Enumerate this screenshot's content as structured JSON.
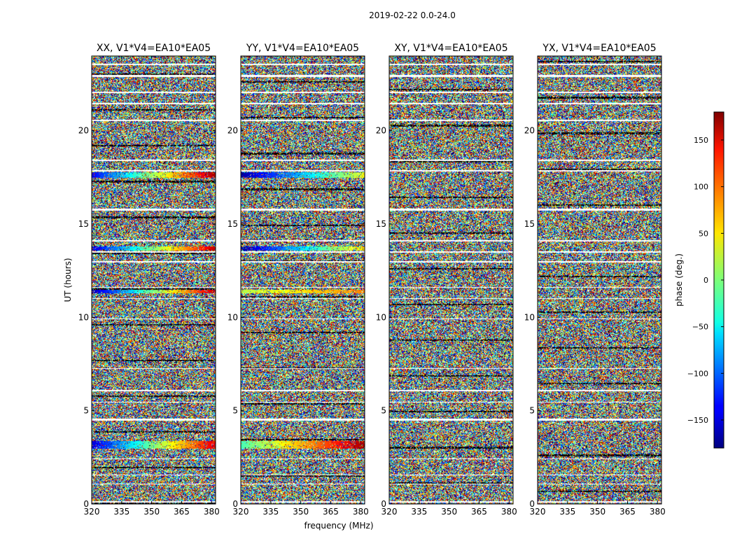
{
  "figure": {
    "suptitle": "2019-02-22 0.0-24.0",
    "xlabel": "frequency (MHz)",
    "ylabel": "UT (hours)"
  },
  "chart_data": [
    {
      "type": "heatmap",
      "title": "XX, V1*V4=EA10*EA05",
      "xlabel": "frequency (MHz)",
      "ylabel": "UT (hours)",
      "xlim": [
        320,
        382
      ],
      "ylim": [
        0,
        24
      ],
      "xticks": [
        320,
        335,
        350,
        365,
        380
      ],
      "yticks": [
        0,
        5,
        10,
        15,
        20
      ],
      "value": "phase (deg.)",
      "features": [
        {
          "ut": [
            3.0,
            3.4
          ],
          "phase_low_freq": -150,
          "phase_high_freq": 150
        },
        {
          "ut": [
            11.3,
            11.5
          ],
          "phase_low_freq": -160,
          "phase_high_freq": 160
        },
        {
          "ut": [
            13.6,
            13.8
          ],
          "phase_low_freq": -150,
          "phase_high_freq": 160
        },
        {
          "ut": [
            17.5,
            17.8
          ],
          "phase_low_freq": -140,
          "phase_high_freq": 170
        }
      ]
    },
    {
      "type": "heatmap",
      "title": "YY, V1*V4=EA10*EA05",
      "xlabel": "frequency (MHz)",
      "ylabel": "UT (hours)",
      "xlim": [
        320,
        382
      ],
      "ylim": [
        0,
        24
      ],
      "xticks": [
        320,
        335,
        350,
        365,
        380
      ],
      "yticks": [
        0,
        5,
        10,
        15,
        20
      ],
      "value": "phase (deg.)",
      "features": [
        {
          "ut": [
            3.0,
            3.4
          ],
          "phase_low_freq": -20,
          "phase_high_freq": 170
        },
        {
          "ut": [
            11.3,
            11.5
          ],
          "phase_low_freq": 20,
          "phase_high_freq": 90
        },
        {
          "ut": [
            13.6,
            13.8
          ],
          "phase_low_freq": -170,
          "phase_high_freq": 60
        },
        {
          "ut": [
            17.5,
            17.8
          ],
          "phase_low_freq": -170,
          "phase_high_freq": 40
        }
      ]
    },
    {
      "type": "heatmap",
      "title": "XY, V1*V4=EA10*EA05",
      "xlabel": "frequency (MHz)",
      "ylabel": "UT (hours)",
      "xlim": [
        320,
        382
      ],
      "ylim": [
        0,
        24
      ],
      "xticks": [
        320,
        335,
        350,
        365,
        380
      ],
      "yticks": [
        0,
        5,
        10,
        15,
        20
      ],
      "value": "phase (deg.)",
      "features": []
    },
    {
      "type": "heatmap",
      "title": "YX, V1*V4=EA10*EA05",
      "xlabel": "frequency (MHz)",
      "ylabel": "UT (hours)",
      "xlim": [
        320,
        382
      ],
      "ylim": [
        0,
        24
      ],
      "xticks": [
        320,
        335,
        350,
        365,
        380
      ],
      "yticks": [
        0,
        5,
        10,
        15,
        20
      ],
      "value": "phase (deg.)",
      "features": []
    }
  ],
  "colorbar": {
    "label": "phase (deg.)",
    "colormap": "jet",
    "range": [
      -180,
      180
    ],
    "ticks": [
      -150,
      -100,
      -50,
      0,
      50,
      100,
      150
    ],
    "tick_labels": [
      "−150",
      "−100",
      "−50",
      "0",
      "50",
      "100",
      "150"
    ]
  },
  "flagged_ut_bands": [
    [
      0.08,
      0.15
    ],
    [
      1.05,
      1.12
    ],
    [
      1.55,
      1.6
    ],
    [
      2.4,
      2.45
    ],
    [
      4.5,
      4.6
    ],
    [
      5.45,
      5.5
    ],
    [
      6.05,
      6.12
    ],
    [
      7.25,
      7.3
    ],
    [
      9.9,
      9.95
    ],
    [
      11.0,
      11.06
    ],
    [
      11.6,
      11.66
    ],
    [
      12.95,
      13.02
    ],
    [
      13.5,
      13.56
    ],
    [
      14.1,
      14.16
    ],
    [
      15.75,
      15.85
    ],
    [
      17.85,
      17.9
    ],
    [
      18.4,
      18.45
    ],
    [
      20.55,
      20.6
    ],
    [
      21.45,
      21.5
    ],
    [
      22.05,
      22.12
    ],
    [
      22.9,
      23.0
    ],
    [
      23.55,
      23.62
    ]
  ]
}
